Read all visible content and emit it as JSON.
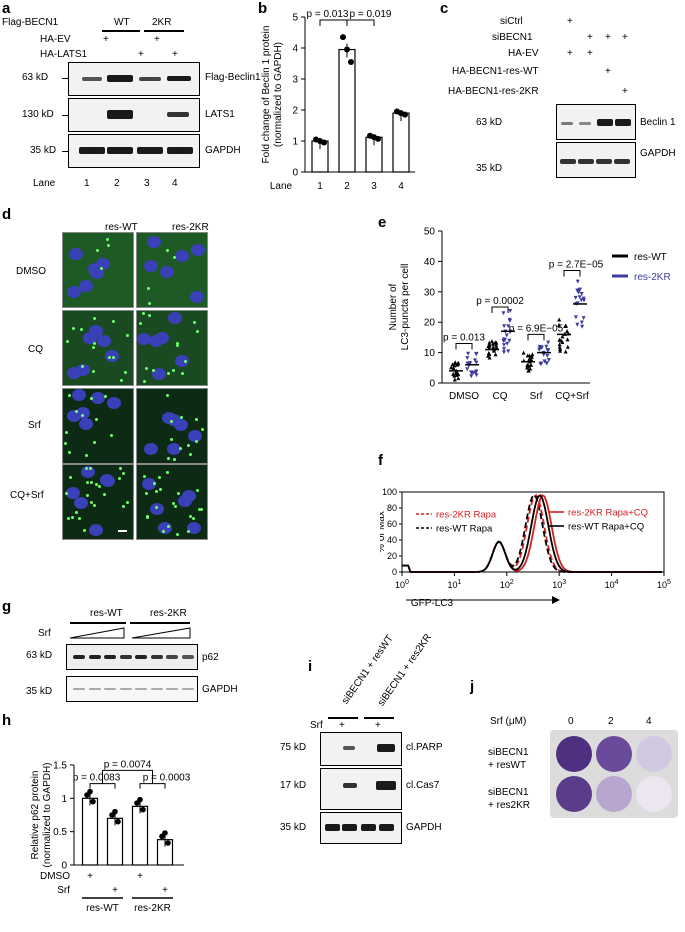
{
  "panels": {
    "a": "a",
    "b": "b",
    "c": "c",
    "d": "d",
    "e": "e",
    "f": "f",
    "g": "g",
    "h": "h",
    "i": "i",
    "j": "j"
  },
  "panel_a": {
    "col_label": "Flag-BECN1",
    "groups": [
      "WT",
      "2KR"
    ],
    "rows": [
      "HA-EV",
      "HA-LATS1"
    ],
    "plus": "+",
    "mw": [
      "63 kD",
      "130 kD",
      "35 kD"
    ],
    "bands": [
      "Flag-Beclin1",
      "LATS1",
      "GAPDH"
    ],
    "lane_label": "Lane",
    "lanes": [
      "1",
      "2",
      "3",
      "4"
    ]
  },
  "panel_b": {
    "chart_data": {
      "type": "bar",
      "categories": [
        "1",
        "2",
        "3",
        "4"
      ],
      "values": [
        1.0,
        3.95,
        1.12,
        1.9
      ],
      "ylabel": "Fold change of Beclin 1 protein\n(normalized to GAPDH)",
      "ylim": [
        0,
        5
      ],
      "yticks": [
        "0",
        "1",
        "2",
        "3",
        "4",
        "5"
      ],
      "xlabel_prefix": "Lane",
      "annotations": [
        "p = 0.013",
        "p = 0.019"
      ]
    }
  },
  "panel_c": {
    "rows": [
      "siCtrl",
      "siBECN1",
      "HA-EV",
      "HA-BECN1-res-WT",
      "HA-BECN1-res-2KR"
    ],
    "plus": "+",
    "mw": [
      "63 kD",
      "35 kD"
    ],
    "bands": [
      "Beclin 1",
      "GAPDH"
    ]
  },
  "panel_d": {
    "cols": [
      "res-WT",
      "res-2KR"
    ],
    "rows": [
      "DMSO",
      "CQ",
      "Srf",
      "CQ+Srf"
    ]
  },
  "panel_e": {
    "chart_data": {
      "type": "scatter",
      "categories": [
        "DMSO",
        "CQ",
        "Srf",
        "CQ+Srf"
      ],
      "ylabel": "Number of\nLC3-puncta per cell",
      "ylim": [
        0,
        50
      ],
      "yticks": [
        "0",
        "10",
        "20",
        "30",
        "40",
        "50"
      ],
      "series": [
        {
          "name": "res-WT",
          "color": "#000000",
          "medians": [
            4,
            11,
            7,
            16
          ]
        },
        {
          "name": "res-2KR",
          "color": "#3c3ca0",
          "medians": [
            6,
            17,
            10,
            26
          ]
        }
      ],
      "annotations": [
        "p = 0.013",
        "p = 0.0002",
        "p = 6.9E−05",
        "p = 2.7E−05"
      ]
    }
  },
  "panel_f": {
    "chart_data": {
      "type": "line",
      "ylabel": "% of Max",
      "xlabel": "GFP-LC3",
      "ylim": [
        0,
        100
      ],
      "yticks": [
        "0",
        "20",
        "40",
        "60",
        "80",
        "100"
      ],
      "xticks": [
        "10^0",
        "10^1",
        "10^2",
        "10^3",
        "10^4",
        "10^5"
      ],
      "series": [
        {
          "name": "res-2KR Rapa",
          "color": "#d62020",
          "style": "dashed"
        },
        {
          "name": "res-WT Rapa",
          "color": "#000000",
          "style": "dashed"
        },
        {
          "name": "res-2KR Rapa+CQ",
          "color": "#d62020",
          "style": "solid"
        },
        {
          "name": "res-WT Rapa+CQ",
          "color": "#000000",
          "style": "solid"
        }
      ]
    }
  },
  "panel_g": {
    "groups": [
      "res-WT",
      "res-2KR"
    ],
    "row": "Srf",
    "mw": [
      "63 kD",
      "35 kD"
    ],
    "bands": [
      "p62",
      "GAPDH"
    ]
  },
  "panel_h": {
    "chart_data": {
      "type": "bar",
      "categories": [
        "res-WT DMSO",
        "res-WT Srf",
        "res-2KR DMSO",
        "res-2KR Srf"
      ],
      "values": [
        1.0,
        0.7,
        0.88,
        0.38
      ],
      "ylabel": "Relative p62 protein\n(normalized to GAPDH)",
      "ylim": [
        0,
        1.5
      ],
      "yticks": [
        "0",
        "0.5",
        "1",
        "1.5"
      ],
      "annotations": [
        "p = 0.0083",
        "p = 0.0074",
        "p = 0.0003"
      ]
    },
    "rows": [
      "DMSO",
      "Srf"
    ],
    "groups": [
      "res-WT",
      "res-2KR"
    ],
    "plus": "+"
  },
  "panel_i": {
    "cols": [
      "siBECN1 + resWT",
      "siBECN1 + res2KR"
    ],
    "row": "Srf",
    "plus": "+",
    "mw": [
      "75 kD",
      "17 kD",
      "35 kD"
    ],
    "bands": [
      "cl.PARP",
      "cl.Cas7",
      "GAPDH"
    ]
  },
  "panel_j": {
    "header": "Srf (μM)",
    "conc": [
      "0",
      "2",
      "4"
    ],
    "rows": [
      "siBECN1\n+ resWT",
      "siBECN1\n+ res2KR"
    ],
    "colors": {
      "dark": "#5a3c8a",
      "mid": "#8a6ab0",
      "light": "#d8d0e6"
    }
  }
}
